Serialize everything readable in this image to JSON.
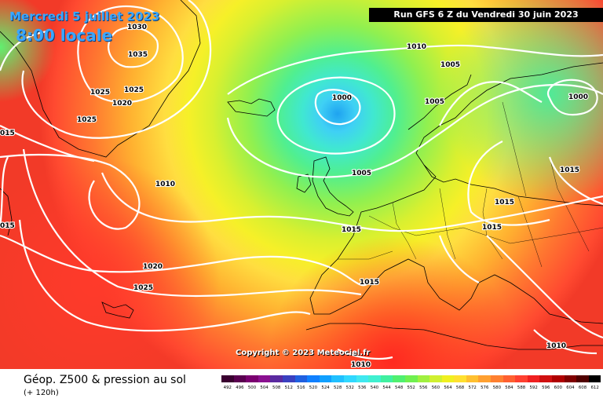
{
  "header": {
    "date": "Mercredi 5 juillet 2023",
    "time": "8:00 locale",
    "run": "Run GFS 6 Z du Vendredi 30 juin 2023"
  },
  "copyright": "Copyright © 2023 Meteociel.fr",
  "footer": {
    "title": "Géop. Z500 & pression au sol",
    "subtitle": "(+ 120h)"
  },
  "legend": {
    "labels": [
      "492",
      "496",
      "500",
      "504",
      "508",
      "512",
      "516",
      "520",
      "524",
      "528",
      "532",
      "536",
      "540",
      "544",
      "548",
      "552",
      "556",
      "560",
      "564",
      "568",
      "572",
      "576",
      "580",
      "584",
      "588",
      "592",
      "596",
      "600",
      "604",
      "608",
      "612"
    ],
    "colors": [
      "#3a0030",
      "#5a0050",
      "#7a0070",
      "#8a1090",
      "#5a2aa0",
      "#3a40c0",
      "#2060e0",
      "#1080ff",
      "#10a0ff",
      "#20c0ff",
      "#30d8ff",
      "#40e8f0",
      "#40f0d0",
      "#40f0a0",
      "#50f070",
      "#70f050",
      "#a0f040",
      "#d0f030",
      "#f0f020",
      "#ffe030",
      "#ffc030",
      "#ffa030",
      "#ff8030",
      "#ff6030",
      "#ff4030",
      "#f02020",
      "#d01010",
      "#b00000",
      "#800000",
      "#500000",
      "#000000"
    ]
  },
  "isobars": [
    {
      "label": "1030"
    },
    {
      "label": "1035"
    },
    {
      "label": "1025"
    },
    {
      "label": "1025"
    },
    {
      "label": "1020"
    },
    {
      "label": "1025"
    },
    {
      "label": "015"
    },
    {
      "label": "1010"
    },
    {
      "label": "1000"
    },
    {
      "label": "1005"
    },
    {
      "label": "1005"
    },
    {
      "label": "1000"
    },
    {
      "label": "1010"
    },
    {
      "label": "1005"
    },
    {
      "label": "1015"
    },
    {
      "label": "1015"
    },
    {
      "label": "1015"
    },
    {
      "label": "1015"
    },
    {
      "label": "015"
    },
    {
      "label": "1020"
    },
    {
      "label": "1025"
    },
    {
      "label": "1015"
    },
    {
      "label": "1010"
    },
    {
      "label": "1010"
    }
  ]
}
